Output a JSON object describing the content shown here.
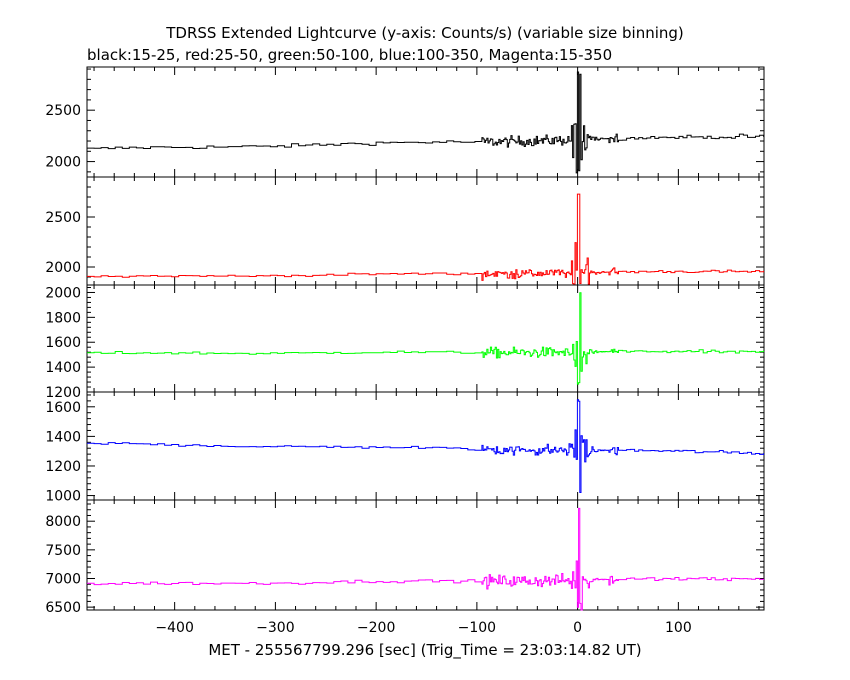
{
  "chart_data": {
    "type": "line",
    "title": "TDRSS Extended Lightcurve (y-axis: Counts/s) (variable size binning)",
    "subtitle": "black:15-25, red:25-50, green:50-100, blue:100-350, Magenta:15-350",
    "xlabel": "MET - 255567799.296 [sec] (Trig_Time = 23:03:14.82 UT)",
    "xlim": [
      -487,
      185
    ],
    "xticks": [
      -400,
      -300,
      -200,
      -100,
      0,
      100
    ],
    "xtick_labels": [
      "−400",
      "−300",
      "−200",
      "−100",
      "0",
      "100"
    ],
    "grid": false,
    "panels": [
      {
        "name": "15-25",
        "color": "#000000",
        "ylim": [
          1850,
          2920
        ],
        "yticks": [
          2000,
          2500
        ],
        "baseline_start": 2120,
        "baseline_end": 2250,
        "noise_quiet": 20,
        "noise_active": 60,
        "peak": 2900,
        "trough": 1860
      },
      {
        "name": "25-50",
        "color": "#ff0000",
        "ylim": [
          1820,
          2900
        ],
        "yticks": [
          2000,
          2500
        ],
        "baseline_start": 1900,
        "baseline_end": 1960,
        "noise_quiet": 15,
        "noise_active": 55,
        "peak": 2830,
        "trough": 1830
      },
      {
        "name": "50-100",
        "color": "#00ff00",
        "ylim": [
          1200,
          2060
        ],
        "yticks": [
          1200,
          1400,
          1600,
          1800,
          2000
        ],
        "baseline_start": 1510,
        "baseline_end": 1525,
        "noise_quiet": 12,
        "noise_active": 50,
        "peak": 2050,
        "trough": 1260
      },
      {
        "name": "100-350",
        "color": "#0000ff",
        "ylim": [
          970,
          1700
        ],
        "yticks": [
          1000,
          1200,
          1400,
          1600
        ],
        "baseline_start": 1350,
        "baseline_end": 1290,
        "noise_quiet": 12,
        "noise_active": 45,
        "peak": 1690,
        "trough": 980
      },
      {
        "name": "15-350",
        "color": "#ff00ff",
        "ylim": [
          6450,
          8370
        ],
        "yticks": [
          6500,
          7000,
          7500,
          8000
        ],
        "baseline_start": 6900,
        "baseline_end": 7000,
        "noise_quiet": 30,
        "noise_active": 130,
        "peak": 8330,
        "trough": 6470
      }
    ]
  }
}
